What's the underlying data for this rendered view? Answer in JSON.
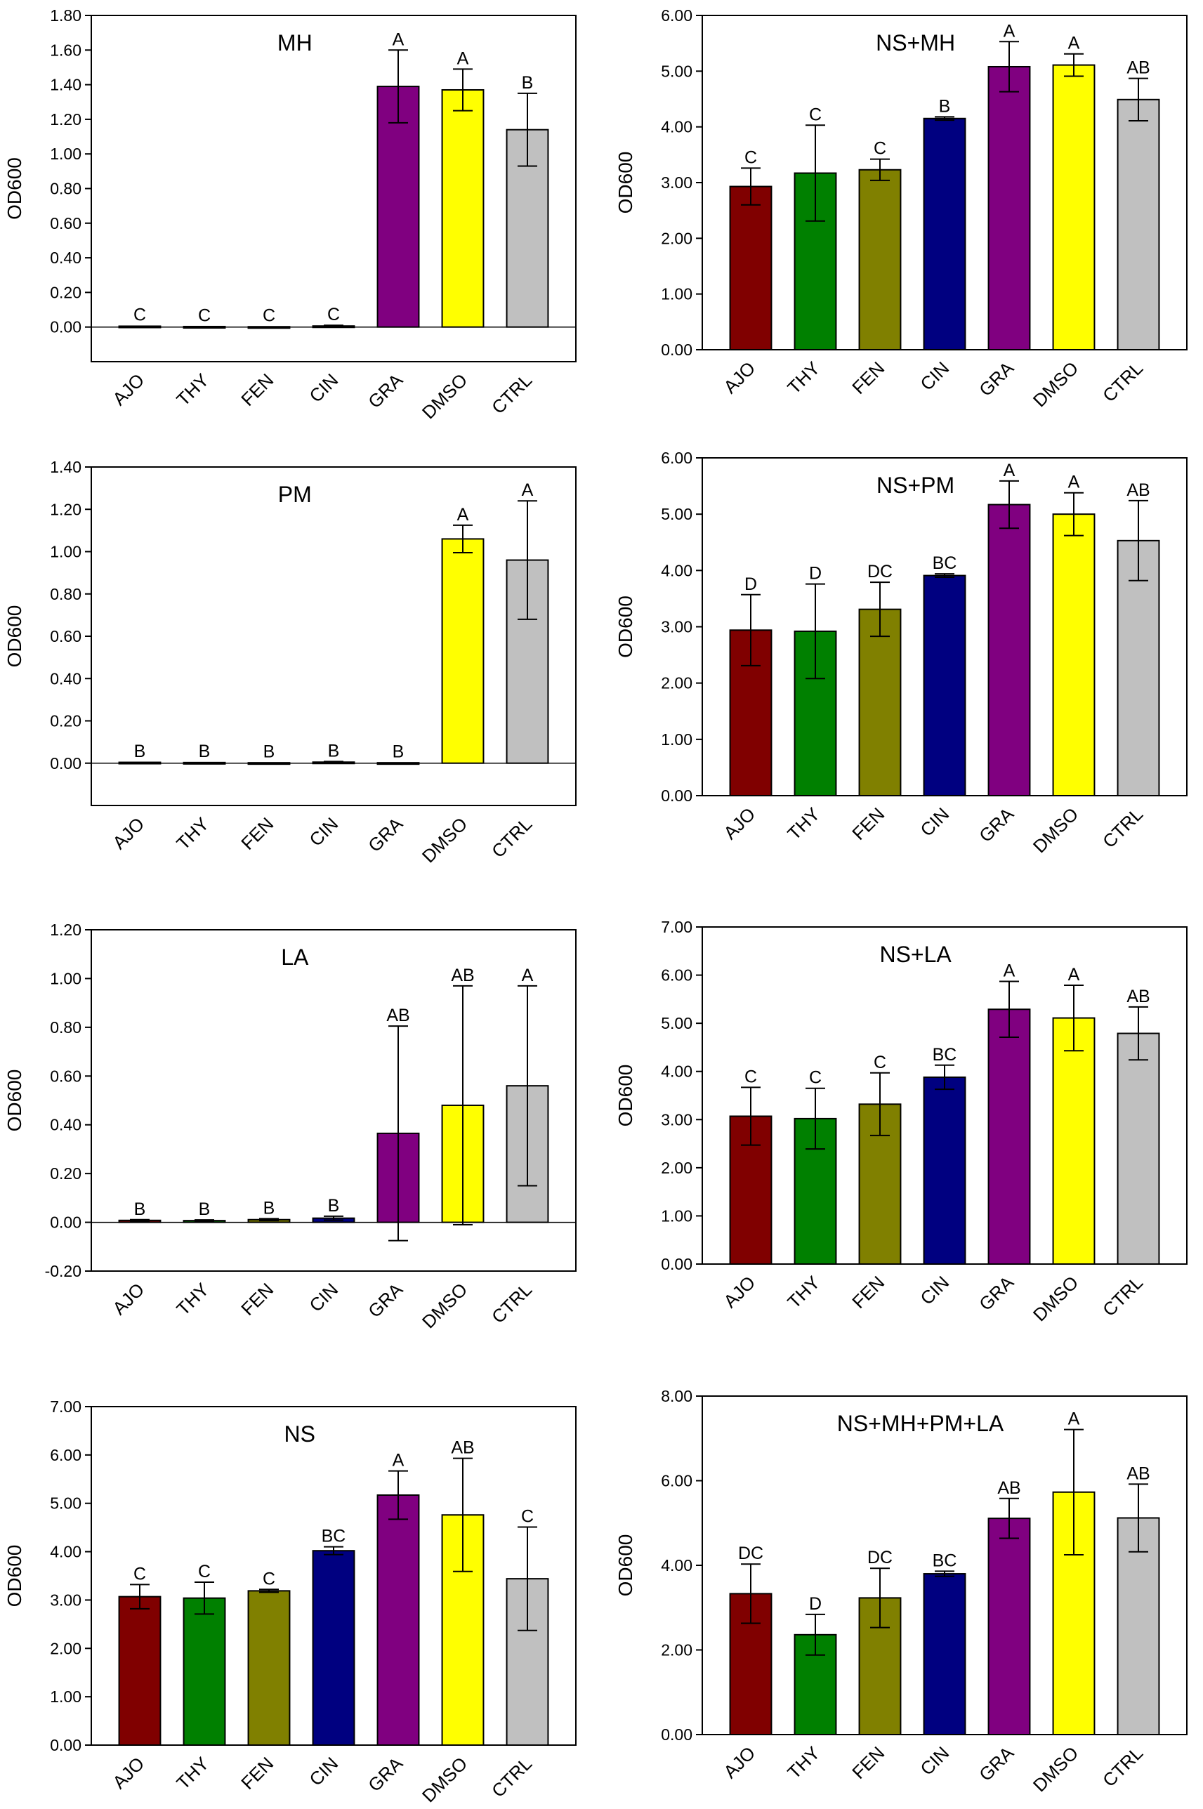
{
  "figure_title": "",
  "chart_data": [
    {
      "type": "bar",
      "title": "MH",
      "xlabel": "",
      "ylabel": "OD600",
      "categories": [
        "AJO",
        "THY",
        "FEN",
        "CIN",
        "GRA",
        "DMSO",
        "CTRL"
      ],
      "values": [
        0.005,
        0.003,
        0.002,
        0.006,
        1.39,
        1.37,
        1.14
      ],
      "errors": [
        0.003,
        0.002,
        0.002,
        0.004,
        0.21,
        0.12,
        0.21
      ],
      "letters": [
        "C",
        "C",
        "C",
        "C",
        "A",
        "A",
        "B"
      ],
      "ylim": [
        -0.2,
        1.8
      ],
      "yticks": [
        0.0,
        0.2,
        0.4,
        0.6,
        0.8,
        1.0,
        1.2,
        1.4,
        1.6,
        1.8
      ],
      "zero_line": true
    },
    {
      "type": "bar",
      "title": "NS+MH",
      "xlabel": "",
      "ylabel": "OD600",
      "categories": [
        "AJO",
        "THY",
        "FEN",
        "CIN",
        "GRA",
        "DMSO",
        "CTRL"
      ],
      "values": [
        2.93,
        3.17,
        3.23,
        4.15,
        5.08,
        5.11,
        4.49
      ],
      "errors": [
        0.33,
        0.86,
        0.19,
        0.03,
        0.45,
        0.2,
        0.38
      ],
      "letters": [
        "C",
        "C",
        "C",
        "B",
        "A",
        "A",
        "AB"
      ],
      "ylim": [
        0.0,
        6.0
      ],
      "yticks": [
        0.0,
        1.0,
        2.0,
        3.0,
        4.0,
        5.0,
        6.0
      ],
      "zero_line": false
    },
    {
      "type": "bar",
      "title": "PM",
      "xlabel": "",
      "ylabel": "OD600",
      "categories": [
        "AJO",
        "THY",
        "FEN",
        "CIN",
        "GRA",
        "DMSO",
        "CTRL"
      ],
      "values": [
        0.004,
        0.003,
        0.002,
        0.005,
        0.002,
        1.06,
        0.96
      ],
      "errors": [
        0.002,
        0.002,
        0.002,
        0.003,
        0.002,
        0.065,
        0.28
      ],
      "letters": [
        "B",
        "B",
        "B",
        "B",
        "B",
        "A",
        "A"
      ],
      "ylim": [
        -0.2,
        1.4
      ],
      "yticks": [
        0.0,
        0.2,
        0.4,
        0.6,
        0.8,
        1.0,
        1.2,
        1.4
      ],
      "zero_line": true
    },
    {
      "type": "bar",
      "title": "NS+PM",
      "xlabel": "",
      "ylabel": "OD600",
      "categories": [
        "AJO",
        "THY",
        "FEN",
        "CIN",
        "GRA",
        "DMSO",
        "CTRL"
      ],
      "values": [
        2.94,
        2.92,
        3.31,
        3.91,
        5.17,
        5.0,
        4.53
      ],
      "errors": [
        0.63,
        0.84,
        0.48,
        0.03,
        0.42,
        0.38,
        0.71
      ],
      "letters": [
        "D",
        "D",
        "DC",
        "BC",
        "A",
        "A",
        "AB"
      ],
      "ylim": [
        0.0,
        6.0
      ],
      "yticks": [
        0.0,
        1.0,
        2.0,
        3.0,
        4.0,
        5.0,
        6.0
      ],
      "zero_line": false
    },
    {
      "type": "bar",
      "title": "LA",
      "xlabel": "",
      "ylabel": "OD600",
      "categories": [
        "AJO",
        "THY",
        "FEN",
        "CIN",
        "GRA",
        "DMSO",
        "CTRL"
      ],
      "values": [
        0.008,
        0.007,
        0.011,
        0.017,
        0.365,
        0.48,
        0.56
      ],
      "errors": [
        0.003,
        0.003,
        0.004,
        0.008,
        0.44,
        0.49,
        0.41
      ],
      "letters": [
        "B",
        "B",
        "B",
        "B",
        "AB",
        "AB",
        "A"
      ],
      "ylim": [
        -0.2,
        1.2
      ],
      "yticks": [
        -0.2,
        0.0,
        0.2,
        0.4,
        0.6,
        0.8,
        1.0,
        1.2
      ],
      "zero_line": true
    },
    {
      "type": "bar",
      "title": "NS+LA",
      "xlabel": "",
      "ylabel": "OD600",
      "categories": [
        "AJO",
        "THY",
        "FEN",
        "CIN",
        "GRA",
        "DMSO",
        "CTRL"
      ],
      "values": [
        3.07,
        3.02,
        3.32,
        3.88,
        5.29,
        5.11,
        4.79
      ],
      "errors": [
        0.6,
        0.63,
        0.65,
        0.25,
        0.58,
        0.68,
        0.55
      ],
      "letters": [
        "C",
        "C",
        "C",
        "BC",
        "A",
        "A",
        "AB"
      ],
      "ylim": [
        0.0,
        7.0
      ],
      "yticks": [
        0.0,
        1.0,
        2.0,
        3.0,
        4.0,
        5.0,
        6.0,
        7.0
      ],
      "zero_line": false
    },
    {
      "type": "bar",
      "title": "NS",
      "xlabel": "",
      "ylabel": "OD600",
      "categories": [
        "AJO",
        "THY",
        "FEN",
        "CIN",
        "GRA",
        "DMSO",
        "CTRL"
      ],
      "values": [
        3.07,
        3.04,
        3.19,
        4.02,
        5.17,
        4.76,
        3.44
      ],
      "errors": [
        0.25,
        0.33,
        0.03,
        0.08,
        0.5,
        1.17,
        1.07
      ],
      "letters": [
        "C",
        "C",
        "C",
        "BC",
        "A",
        "AB",
        "C"
      ],
      "ylim": [
        0.0,
        7.0
      ],
      "yticks": [
        0.0,
        1.0,
        2.0,
        3.0,
        4.0,
        5.0,
        6.0,
        7.0
      ],
      "zero_line": false
    },
    {
      "type": "bar",
      "title": "NS+MH+PM+LA",
      "xlabel": "",
      "ylabel": "OD600",
      "categories": [
        "AJO",
        "THY",
        "FEN",
        "CIN",
        "GRA",
        "DMSO",
        "CTRL"
      ],
      "values": [
        3.33,
        2.36,
        3.23,
        3.8,
        5.11,
        5.73,
        5.12
      ],
      "errors": [
        0.7,
        0.48,
        0.7,
        0.06,
        0.47,
        1.48,
        0.8
      ],
      "letters": [
        "DC",
        "D",
        "DC",
        "BC",
        "AB",
        "A",
        "AB"
      ],
      "ylim": [
        0.0,
        8.0
      ],
      "yticks": [
        0.0,
        2.0,
        4.0,
        6.0,
        8.0
      ],
      "zero_line": false
    }
  ],
  "colors": {
    "AJO": "#800000",
    "THY": "#008000",
    "FEN": "#808000",
    "CIN": "#000080",
    "GRA": "#800080",
    "DMSO": "#ffff00",
    "CTRL": "#c0c0c0",
    "axis": "#000000",
    "background": "#ffffff"
  }
}
